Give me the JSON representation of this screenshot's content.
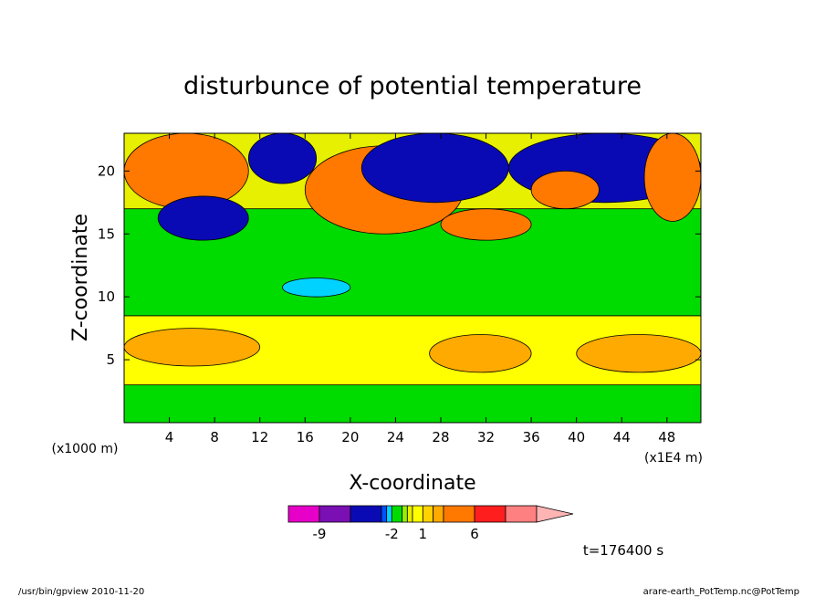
{
  "chart_data": {
    "type": "heatmap",
    "title": "disturbunce of potential temperature",
    "xlabel": "X-coordinate",
    "ylabel": "Z-coordinate",
    "x_unit": "(x1000 m)",
    "x_scale_label": "(x1E4 m)",
    "xlim": [
      0,
      51
    ],
    "ylim": [
      0,
      23
    ],
    "x_ticks": [
      4,
      8,
      12,
      16,
      20,
      24,
      28,
      32,
      36,
      40,
      44,
      48
    ],
    "y_ticks": [
      5,
      10,
      15,
      20
    ],
    "time_label": "t=176400 s",
    "colorbar": {
      "labels": [
        {
          "text": "-9",
          "value": -9
        },
        {
          "text": "-2",
          "value": -2
        },
        {
          "text": "1",
          "value": 1
        },
        {
          "text": "6",
          "value": 6
        }
      ],
      "bins": [
        {
          "from": -15,
          "to": -9,
          "color": "#e600c8"
        },
        {
          "from": -9,
          "to": -6,
          "color": "#7a0fb4"
        },
        {
          "from": -6,
          "to": -3,
          "color": "#0a0ab4"
        },
        {
          "from": -3,
          "to": -2.5,
          "color": "#0050ff"
        },
        {
          "from": -2.5,
          "to": -2,
          "color": "#00d2ff"
        },
        {
          "from": -2,
          "to": -1,
          "color": "#00dc00"
        },
        {
          "from": -1,
          "to": -0.5,
          "color": "#96f000"
        },
        {
          "from": -0.5,
          "to": 0,
          "color": "#e6f000"
        },
        {
          "from": 0,
          "to": 1,
          "color": "#ffff00"
        },
        {
          "from": 1,
          "to": 2,
          "color": "#ffd200"
        },
        {
          "from": 2,
          "to": 3,
          "color": "#ffaa00"
        },
        {
          "from": 3,
          "to": 6,
          "color": "#ff7800"
        },
        {
          "from": 6,
          "to": 9,
          "color": "#ff1e1e"
        },
        {
          "from": 9,
          "to": 15,
          "color": "#ff8080"
        },
        {
          "from": 15,
          "to": 20,
          "color": "#ffb4b4"
        }
      ]
    },
    "fields": [
      {
        "label": "near-surface warm layer",
        "value": 0.5,
        "x": [
          0,
          51
        ],
        "y": [
          0,
          8.5
        ]
      },
      {
        "label": "warm blob x=3-10",
        "value": 2.5,
        "x": [
          0,
          12
        ],
        "y": [
          4.5,
          7.5
        ]
      },
      {
        "label": "warm blob x=27-36",
        "value": 2.5,
        "x": [
          27,
          36
        ],
        "y": [
          4,
          7
        ]
      },
      {
        "label": "warm blob x=40-51",
        "value": 2.5,
        "x": [
          40,
          51
        ],
        "y": [
          4,
          7
        ]
      },
      {
        "label": "mid troposphere",
        "value": -1.5,
        "x": [
          0,
          51
        ],
        "y": [
          8.5,
          17
        ]
      },
      {
        "label": "cold pocket x=14-20",
        "value": -2.3,
        "x": [
          14,
          20
        ],
        "y": [
          10,
          11.5
        ]
      },
      {
        "label": "upper warm west",
        "value": 4,
        "x": [
          0,
          11
        ],
        "y": [
          17,
          23
        ]
      },
      {
        "label": "upper cold x=3-11",
        "value": -4,
        "x": [
          3,
          11
        ],
        "y": [
          14.5,
          18
        ]
      },
      {
        "label": "upper cold x=11-17",
        "value": -4,
        "x": [
          11,
          17
        ],
        "y": [
          19,
          23
        ]
      },
      {
        "label": "warm tongue x=16-30",
        "value": 4,
        "x": [
          16,
          30
        ],
        "y": [
          15,
          22
        ]
      },
      {
        "label": "cold band x=21-34",
        "value": -5,
        "x": [
          21,
          34
        ],
        "y": [
          17.5,
          23
        ]
      },
      {
        "label": "warm blob x=28-36",
        "value": 4,
        "x": [
          28,
          36
        ],
        "y": [
          14.5,
          17
        ]
      },
      {
        "label": "cold region x=34-51",
        "value": -5,
        "x": [
          34,
          51
        ],
        "y": [
          17.5,
          23
        ]
      },
      {
        "label": "warm blob x=36-42",
        "value": 3,
        "x": [
          36,
          42
        ],
        "y": [
          17,
          20
        ]
      },
      {
        "label": "warm east edge",
        "value": 4,
        "x": [
          46,
          51
        ],
        "y": [
          16,
          23
        ]
      },
      {
        "label": "surface cool patches",
        "value": -1.5,
        "x": [
          0,
          51
        ],
        "y": [
          0,
          3
        ]
      }
    ]
  },
  "footer": {
    "left": "/usr/bin/gpview   2010-11-20",
    "right": "arare-earth_PotTemp.nc@PotTemp"
  },
  "colors": {
    "background": "#ffffff",
    "frame": "#000000"
  }
}
